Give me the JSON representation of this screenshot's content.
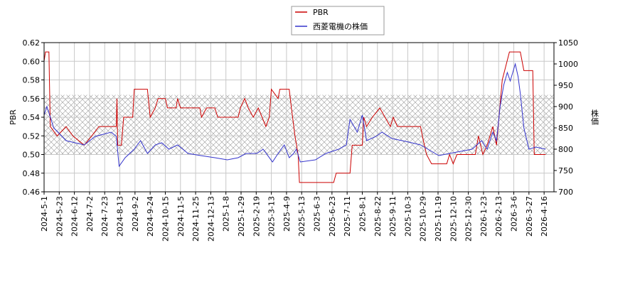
{
  "chart_data": {
    "type": "line",
    "xlim": [
      "2024-5-1",
      "2026-4-29"
    ],
    "xticks": [
      "2024-5-1",
      "2024-5-23",
      "2024-6-12",
      "2024-7-2",
      "2024-7-23",
      "2024-8-13",
      "2024-9-2",
      "2024-9-24",
      "2024-10-15",
      "2024-11-5",
      "2024-11-25",
      "2024-12-13",
      "2025-1-8",
      "2025-1-29",
      "2025-2-19",
      "2025-3-13",
      "2025-4-9",
      "2025-5-13",
      "2025-6-3",
      "2025-6-23",
      "2025-7-11",
      "2025-8-1",
      "2025-8-22",
      "2025-9-11",
      "2025-10-3",
      "2025-10-29",
      "2025-11-19",
      "2025-12-10",
      "2025-12-30",
      "2026-1-23",
      "2026-2-13",
      "2026-3-6",
      "2026-3-27",
      "2026-4-16"
    ],
    "ylabel": "PBR",
    "ylim": [
      0.46,
      0.62
    ],
    "yticks": [
      0.46,
      0.48,
      {
        "value": 0.5,
        "label": "0.50"
      },
      0.52,
      0.54,
      0.56,
      0.58,
      {
        "value": 0.6,
        "label": "0.60"
      },
      0.62
    ],
    "y2label": "株価",
    "y2lim": [
      700,
      1050
    ],
    "y2ticks": [
      700,
      750,
      800,
      850,
      900,
      950,
      1000,
      1050
    ],
    "band": [
      0.5,
      0.564
    ],
    "grid": true,
    "series": [
      {
        "name": "PBR",
        "color": "#cc0000",
        "axis": "y",
        "x": [
          "2024-5-1",
          "2024-5-3",
          "2024-5-8",
          "2024-5-10",
          "2024-5-20",
          "2024-6-1",
          "2024-6-10",
          "2024-6-25",
          "2024-7-5",
          "2024-7-15",
          "2024-8-8",
          "2024-8-9",
          "2024-8-10",
          "2024-8-15",
          "2024-8-18",
          "2024-8-30",
          "2024-9-1",
          "2024-9-20",
          "2024-9-24",
          "2024-10-1",
          "2024-10-5",
          "2024-10-15",
          "2024-10-18",
          "2024-10-30",
          "2024-11-1",
          "2024-11-5",
          "2024-11-30",
          "2024-12-2",
          "2024-12-8",
          "2024-12-20",
          "2024-12-25",
          "2025-1-25",
          "2025-1-28",
          "2025-2-3",
          "2025-2-8",
          "2025-2-15",
          "2025-2-22",
          "2025-3-5",
          "2025-3-10",
          "2025-3-13",
          "2025-3-25",
          "2025-3-28",
          "2025-4-15",
          "2025-4-20",
          "2025-4-28",
          "2025-5-5",
          "2025-5-8",
          "2025-6-25",
          "2025-6-28",
          "2025-7-15",
          "2025-7-18",
          "2025-8-1",
          "2025-8-3",
          "2025-8-7",
          "2025-8-15",
          "2025-8-25",
          "2025-9-1",
          "2025-9-8",
          "2025-9-12",
          "2025-9-18",
          "2025-10-25",
          "2025-10-28",
          "2025-11-3",
          "2025-11-10",
          "2025-12-1",
          "2025-12-5",
          "2025-12-10",
          "2025-12-15",
          "2026-1-10",
          "2026-1-15",
          "2026-1-22",
          "2026-1-28",
          "2026-2-5",
          "2026-2-10",
          "2026-2-18",
          "2026-2-28",
          "2026-3-15",
          "2026-3-20",
          "2026-4-1",
          "2026-4-3",
          "2026-4-18"
        ],
        "values": [
          0.6,
          0.61,
          0.61,
          0.53,
          0.52,
          0.53,
          0.52,
          0.51,
          0.52,
          0.53,
          0.53,
          0.56,
          0.51,
          0.51,
          0.54,
          0.54,
          0.57,
          0.57,
          0.54,
          0.55,
          0.56,
          0.56,
          0.55,
          0.55,
          0.56,
          0.55,
          0.55,
          0.54,
          0.55,
          0.55,
          0.54,
          0.54,
          0.55,
          0.56,
          0.55,
          0.54,
          0.55,
          0.53,
          0.54,
          0.57,
          0.56,
          0.57,
          0.57,
          0.55,
          0.52,
          0.5,
          0.47,
          0.47,
          0.48,
          0.48,
          0.51,
          0.51,
          0.54,
          0.53,
          0.54,
          0.55,
          0.54,
          0.53,
          0.54,
          0.53,
          0.53,
          0.52,
          0.5,
          0.49,
          0.49,
          0.5,
          0.49,
          0.5,
          0.5,
          0.52,
          0.5,
          0.51,
          0.53,
          0.51,
          0.58,
          0.61,
          0.61,
          0.59,
          0.59,
          0.5,
          0.5
        ]
      },
      {
        "name": "西菱電機の株価",
        "color": "#3333cc",
        "axis": "y2",
        "x": [
          "2024-5-1",
          "2024-5-5",
          "2024-5-15",
          "2024-6-1",
          "2024-6-25",
          "2024-7-10",
          "2024-8-1",
          "2024-8-8",
          "2024-8-12",
          "2024-8-20",
          "2024-9-1",
          "2024-9-10",
          "2024-9-20",
          "2024-10-1",
          "2024-10-10",
          "2024-10-20",
          "2024-11-1",
          "2024-11-15",
          "2024-12-1",
          "2024-12-20",
          "2025-1-10",
          "2025-1-25",
          "2025-2-5",
          "2025-2-20",
          "2025-3-1",
          "2025-3-15",
          "2025-3-25",
          "2025-4-5",
          "2025-4-15",
          "2025-4-25",
          "2025-5-1",
          "2025-5-10",
          "2025-6-1",
          "2025-6-15",
          "2025-7-1",
          "2025-7-10",
          "2025-7-15",
          "2025-7-25",
          "2025-8-1",
          "2025-8-7",
          "2025-8-20",
          "2025-8-28",
          "2025-9-10",
          "2025-9-25",
          "2025-10-10",
          "2025-10-25",
          "2025-11-5",
          "2025-11-20",
          "2025-12-5",
          "2025-12-20",
          "2026-1-5",
          "2026-1-20",
          "2026-1-28",
          "2026-2-5",
          "2026-2-10",
          "2026-2-15",
          "2026-2-20",
          "2026-2-25",
          "2026-3-1",
          "2026-3-8",
          "2026-3-12",
          "2026-3-15",
          "2026-3-20",
          "2026-3-27",
          "2026-4-5",
          "2026-4-18"
        ],
        "values": [
          880,
          900,
          850,
          820,
          810,
          830,
          840,
          830,
          760,
          780,
          800,
          820,
          790,
          810,
          815,
          800,
          810,
          790,
          785,
          780,
          775,
          780,
          790,
          790,
          800,
          770,
          790,
          810,
          780,
          790,
          800,
          770,
          775,
          790,
          800,
          810,
          870,
          840,
          880,
          820,
          830,
          840,
          825,
          820,
          815,
          810,
          800,
          785,
          790,
          795,
          800,
          820,
          800,
          840,
          820,
          900,
          950,
          980,
          960,
          1000,
          970,
          930,
          850,
          800,
          805,
          800
        ]
      }
    ]
  }
}
